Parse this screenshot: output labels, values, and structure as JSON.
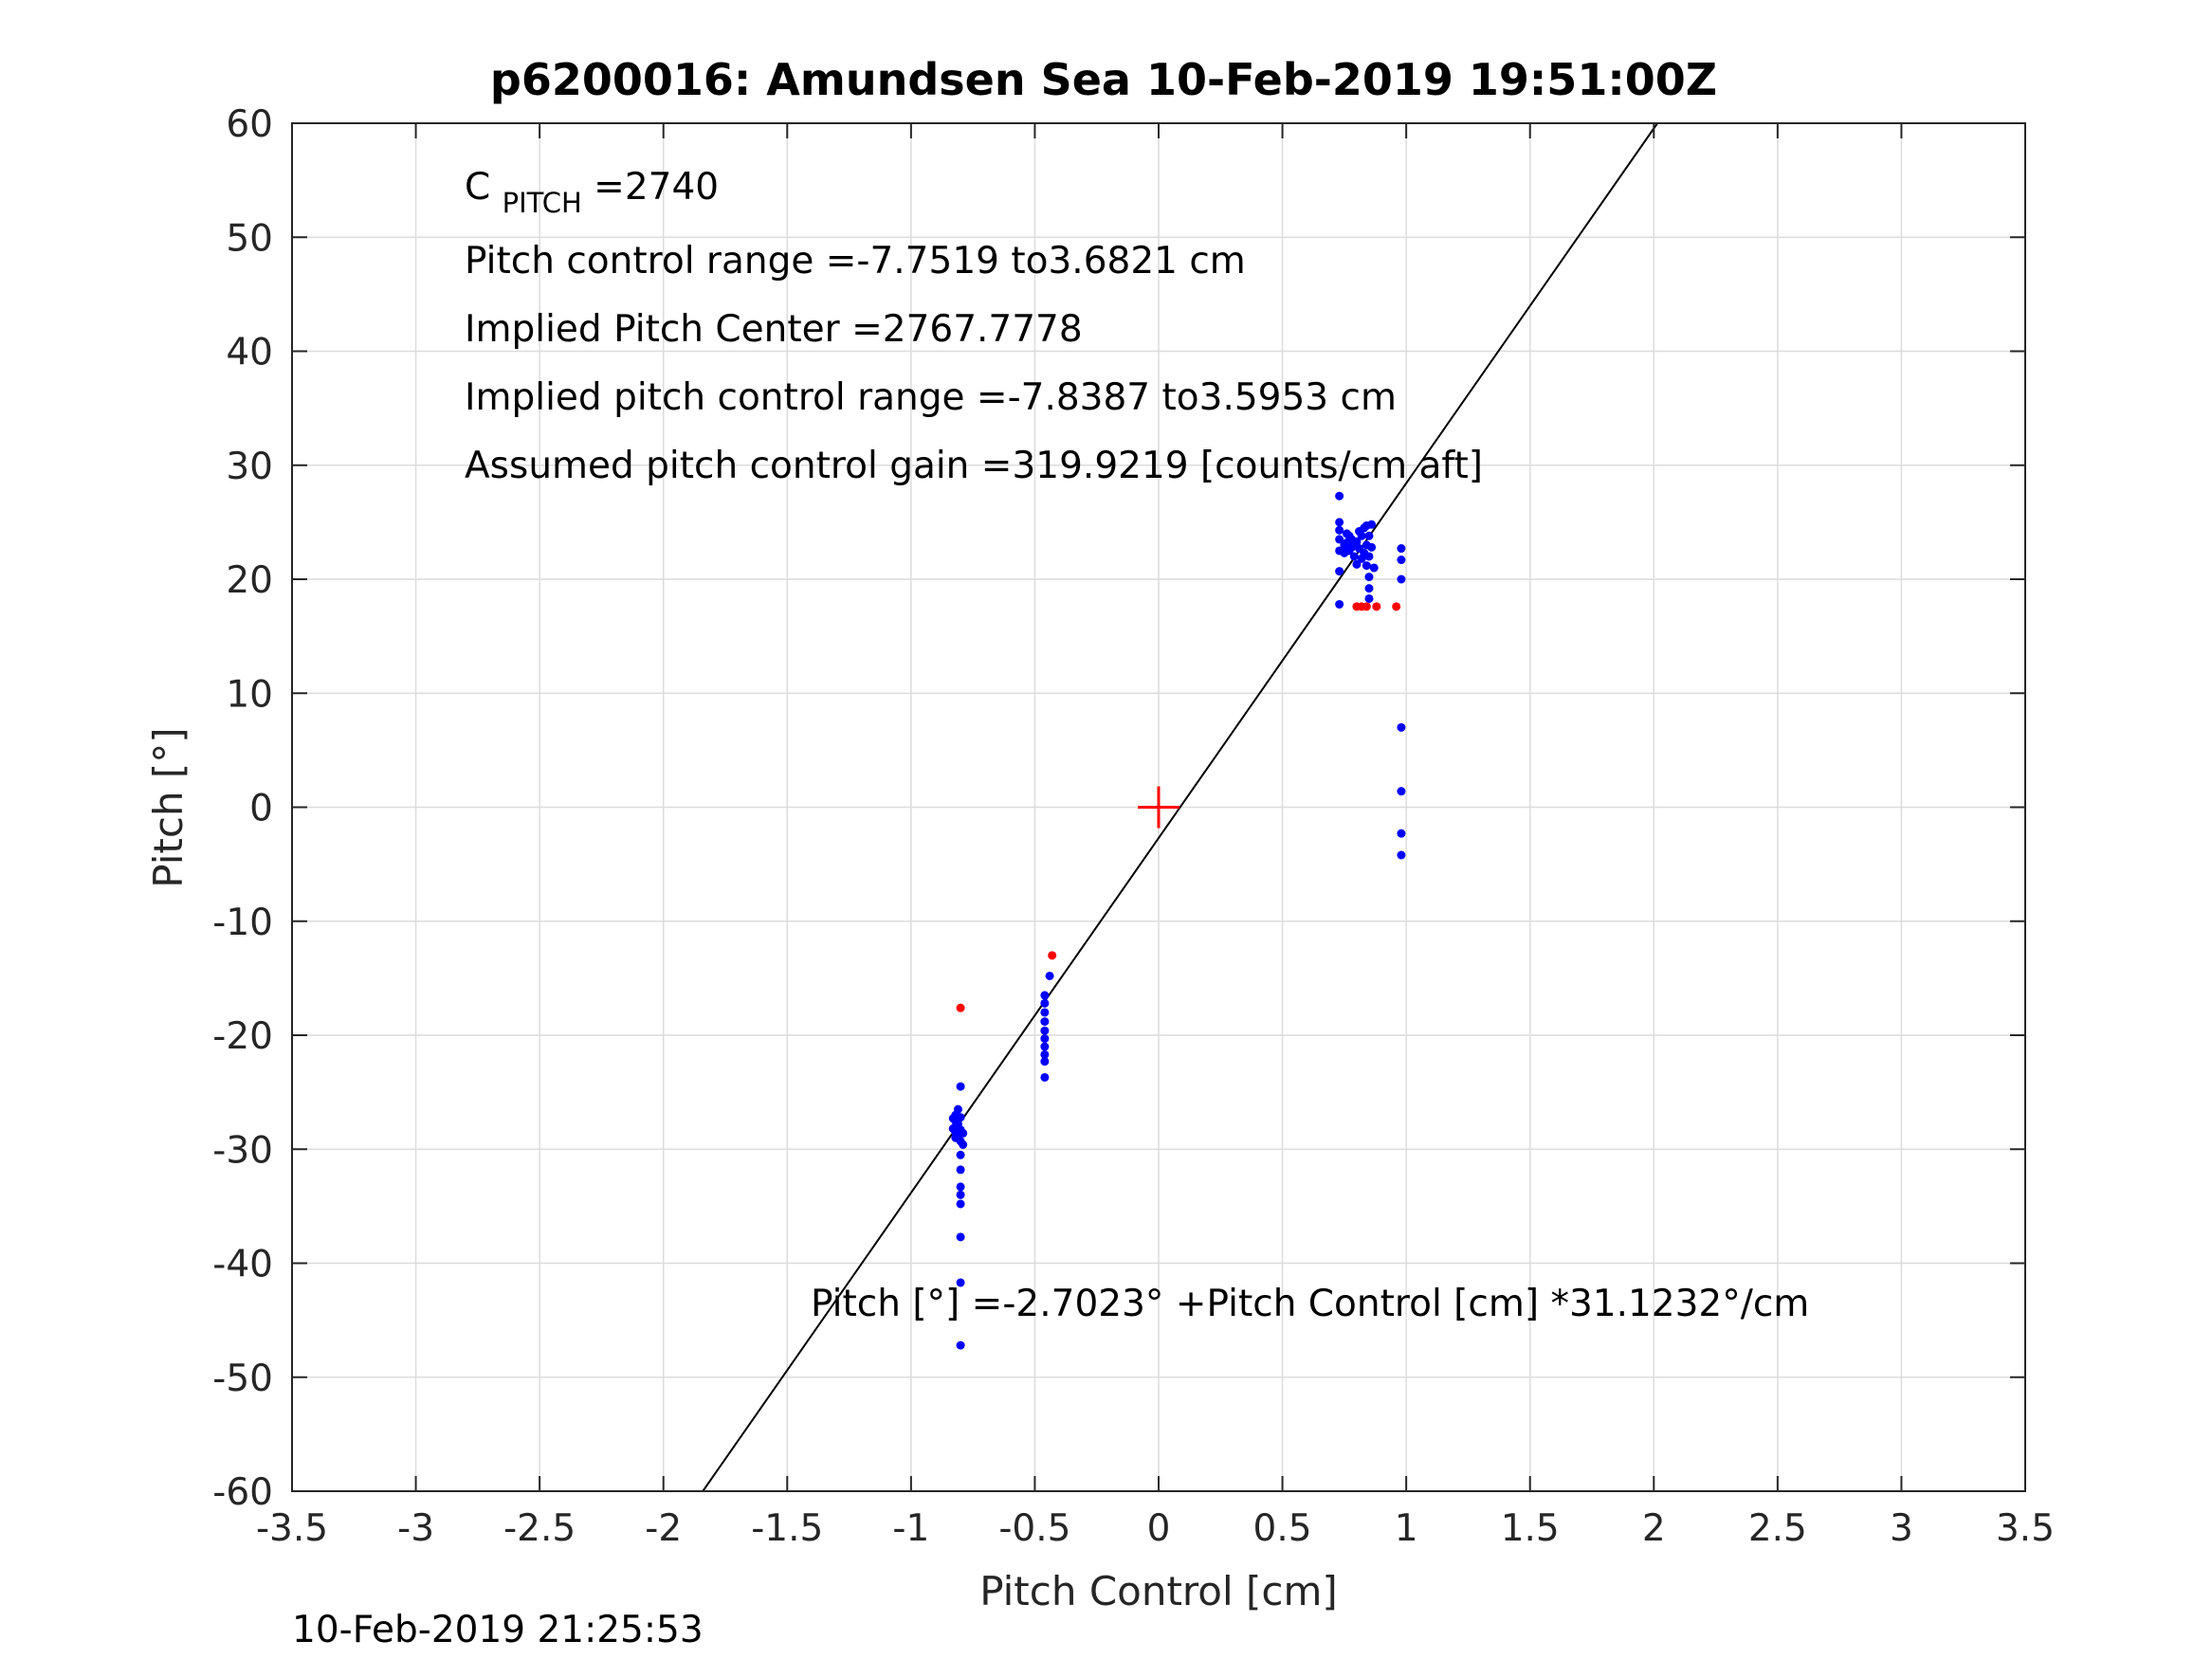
{
  "chart_data": {
    "type": "scatter",
    "title": "p6200016: Amundsen Sea 10-Feb-2019 19:51:00Z",
    "xlabel": "Pitch Control [cm]",
    "ylabel": "Pitch [°]",
    "xlim": [
      -3.5,
      3.5
    ],
    "ylim": [
      -60,
      60
    ],
    "xticks": [
      "-3.5",
      "-3",
      "-2.5",
      "-2",
      "-1.5",
      "-1",
      "-0.5",
      "0",
      "0.5",
      "1",
      "1.5",
      "2",
      "2.5",
      "3",
      "3.5"
    ],
    "yticks": [
      "60",
      "50",
      "40",
      "30",
      "20",
      "10",
      "0",
      "-10",
      "-20",
      "-30",
      "-40",
      "-50",
      "-60"
    ],
    "grid": true,
    "annotations": {
      "cpitch_base": "C",
      "cpitch_sub": "PITCH",
      "cpitch_value": " =2740",
      "range": "Pitch control range =-7.7519 to3.6821 cm",
      "center": "Implied Pitch Center =2767.7778",
      "implied_range": "Implied pitch control range =-7.8387 to3.5953 cm",
      "gain": "Assumed pitch control gain =319.9219 [counts/cm aft]",
      "fit": "Pitch [°] =-2.7023° +Pitch Control [cm] *31.1232°/cm"
    },
    "fit_line": {
      "intercept": -2.7023,
      "slope": 31.1232,
      "color": "#000000"
    },
    "center_marker": {
      "x": 0,
      "y": 0,
      "color": "#ff0000"
    },
    "series": [
      {
        "color": "#0000ff",
        "points": [
          [
            -0.82,
            -27
          ],
          [
            -0.82,
            -27.5
          ],
          [
            -0.82,
            -28
          ],
          [
            -0.82,
            -28.5
          ],
          [
            -0.82,
            -29
          ],
          [
            -0.83,
            -27.3
          ],
          [
            -0.83,
            -28.2
          ],
          [
            -0.81,
            -26.5
          ],
          [
            -0.81,
            -27.8
          ],
          [
            -0.81,
            -28.8
          ],
          [
            -0.8,
            -29.3
          ],
          [
            -0.8,
            -28.3
          ],
          [
            -0.8,
            -27.2
          ],
          [
            -0.79,
            -28.6
          ],
          [
            -0.79,
            -29.6
          ],
          [
            -0.8,
            -24.5
          ],
          [
            -0.8,
            -30.5
          ],
          [
            -0.8,
            -31.8
          ],
          [
            -0.8,
            -33.3
          ],
          [
            -0.8,
            -34
          ],
          [
            -0.8,
            -34.8
          ],
          [
            -0.8,
            -37.7
          ],
          [
            -0.8,
            -41.7
          ],
          [
            -0.8,
            -47.2
          ],
          [
            -0.46,
            -16.5
          ],
          [
            -0.46,
            -17.2
          ],
          [
            -0.46,
            -18
          ],
          [
            -0.46,
            -18.8
          ],
          [
            -0.46,
            -19.6
          ],
          [
            -0.46,
            -20.3
          ],
          [
            -0.46,
            -21
          ],
          [
            -0.46,
            -21.7
          ],
          [
            -0.46,
            -22.3
          ],
          [
            -0.46,
            -23.7
          ],
          [
            -0.44,
            -14.8
          ],
          [
            0.73,
            27.3
          ],
          [
            0.73,
            25
          ],
          [
            0.73,
            24.3
          ],
          [
            0.73,
            23.5
          ],
          [
            0.73,
            22.5
          ],
          [
            0.73,
            20.7
          ],
          [
            0.73,
            17.8
          ],
          [
            0.75,
            23
          ],
          [
            0.75,
            22.3
          ],
          [
            0.76,
            24
          ],
          [
            0.76,
            23.2
          ],
          [
            0.77,
            22.5
          ],
          [
            0.77,
            23.8
          ],
          [
            0.78,
            22.8
          ],
          [
            0.78,
            23.5
          ],
          [
            0.79,
            22
          ],
          [
            0.8,
            23.3
          ],
          [
            0.8,
            21.3
          ],
          [
            0.81,
            24.2
          ],
          [
            0.81,
            22.7
          ],
          [
            0.82,
            23.8
          ],
          [
            0.82,
            21.8
          ],
          [
            0.83,
            24.5
          ],
          [
            0.83,
            22.3
          ],
          [
            0.84,
            23
          ],
          [
            0.84,
            24.7
          ],
          [
            0.84,
            21.2
          ],
          [
            0.85,
            23.8
          ],
          [
            0.85,
            22
          ],
          [
            0.85,
            20.2
          ],
          [
            0.85,
            19.2
          ],
          [
            0.85,
            18.3
          ],
          [
            0.86,
            24.8
          ],
          [
            0.86,
            22.8
          ],
          [
            0.87,
            21
          ],
          [
            0.98,
            22.7
          ],
          [
            0.98,
            21.7
          ],
          [
            0.98,
            20
          ],
          [
            0.98,
            7
          ],
          [
            0.98,
            1.4
          ],
          [
            0.98,
            -2.3
          ],
          [
            0.98,
            -4.2
          ]
        ]
      },
      {
        "color": "#ff0000",
        "points": [
          [
            -0.8,
            -17.6
          ],
          [
            -0.43,
            -13
          ],
          [
            0.8,
            17.6
          ],
          [
            0.82,
            17.6
          ],
          [
            0.84,
            17.6
          ],
          [
            0.88,
            17.6
          ],
          [
            0.96,
            17.6
          ]
        ]
      }
    ]
  },
  "footer": {
    "timestamp": "10-Feb-2019 21:25:53"
  }
}
